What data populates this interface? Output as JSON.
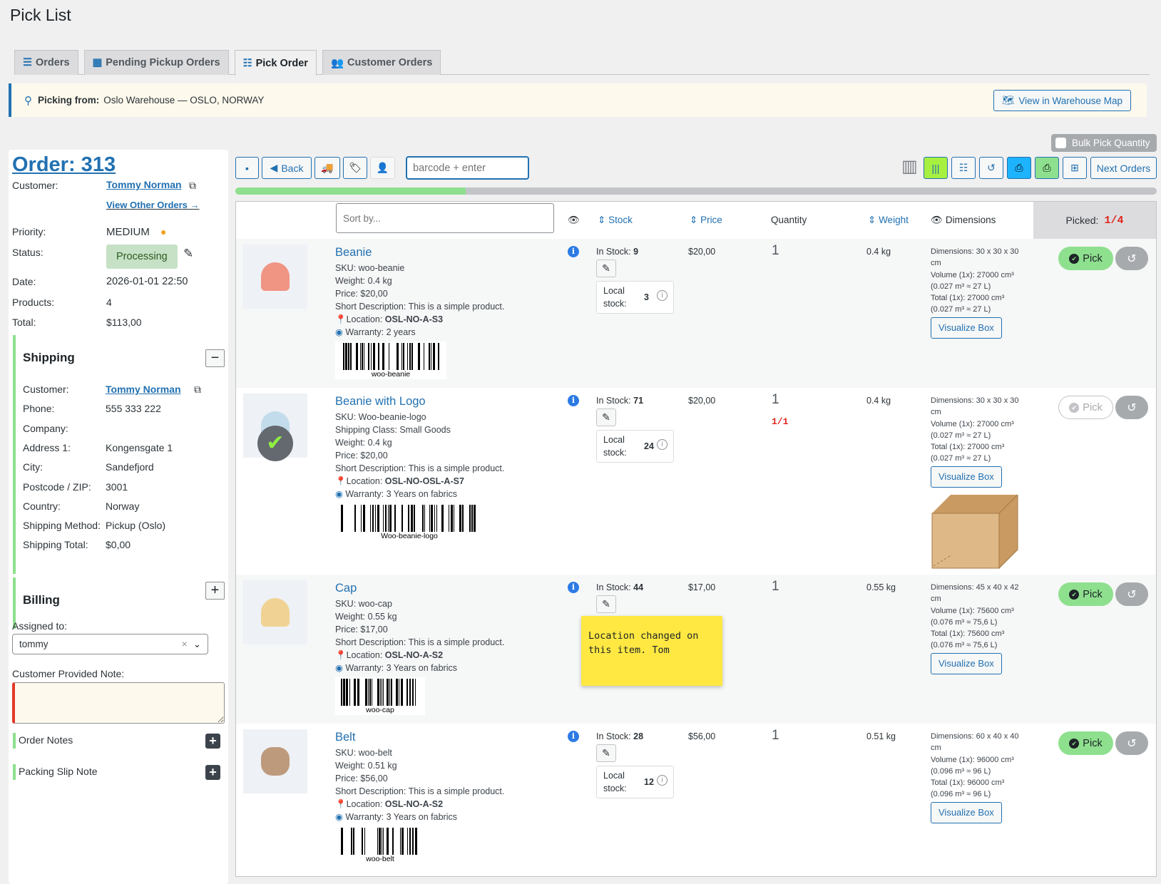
{
  "page_title": "Pick List",
  "tabs": [
    {
      "label": "Orders",
      "icon": "list-icon",
      "active": false
    },
    {
      "label": "Pending Pickup Orders",
      "icon": "store-icon",
      "active": false
    },
    {
      "label": "Pick Order",
      "icon": "checklist-icon",
      "active": true
    },
    {
      "label": "Customer Orders",
      "icon": "users-icon",
      "active": false
    }
  ],
  "notice": {
    "label": "Picking from:",
    "value": "Oslo Warehouse — OSLO, NORWAY",
    "map_button": "View in Warehouse Map"
  },
  "bulk_pick_label": "Bulk Pick Quantity",
  "order": {
    "title": "Order: 313",
    "customer_label": "Customer:",
    "customer": "Tommy Norman",
    "view_other": "View Other Orders →",
    "priority_label": "Priority:",
    "priority": "MEDIUM",
    "status_label": "Status:",
    "status": "Processing",
    "date_label": "Date:",
    "date": "2026-01-01 22:50",
    "products_label": "Products:",
    "products": "4",
    "total_label": "Total:",
    "total": "$113,00"
  },
  "shipping": {
    "title": "Shipping",
    "fields": [
      {
        "k": "Customer:",
        "v": "Tommy Norman",
        "link": true
      },
      {
        "k": "Phone:",
        "v": "555 333 222"
      },
      {
        "k": "Company:",
        "v": ""
      },
      {
        "k": "Address 1:",
        "v": "Kongensgate 1"
      },
      {
        "k": "City:",
        "v": "Sandefjord"
      },
      {
        "k": "Postcode / ZIP:",
        "v": "3001"
      },
      {
        "k": "Country:",
        "v": "Norway"
      },
      {
        "k": "Shipping Method:",
        "v": "Pickup (Oslo)"
      },
      {
        "k": "Shipping Total:",
        "v": "$0,00"
      }
    ]
  },
  "billing": {
    "title": "Billing"
  },
  "assigned": {
    "label": "Assigned to:",
    "value": "tommy"
  },
  "customer_note": {
    "label": "Customer Provided Note:",
    "value": ""
  },
  "order_notes_label": "Order Notes",
  "packing_slip_label": "Packing Slip Note",
  "toolbar": {
    "back": "Back",
    "barcode_placeholder": "barcode + enter",
    "next_orders": "Next Orders"
  },
  "progress": {
    "picked": 1,
    "total": 4,
    "percent": 25
  },
  "columns": {
    "sort_placeholder": "Sort by...",
    "stock": "Stock",
    "price": "Price",
    "quantity": "Quantity",
    "weight": "Weight",
    "dimensions": "Dimensions",
    "picked_label": "Picked:",
    "picked_value": "1/4"
  },
  "products": [
    {
      "name": "Beanie",
      "details": [
        "SKU: woo-beanie",
        "Weight: 0.4 kg",
        "Price: $20,00",
        "Short Description: This is a simple product."
      ],
      "location": "OSL-NO-A-S3",
      "warranty": "2 years",
      "barcode": "woo-beanie",
      "in_stock": "9",
      "local_stock": "3",
      "price": "$20,00",
      "qty": "1",
      "qty_picked": "",
      "weight": "0.4 kg",
      "dims": [
        "Dimensions: 30 x 30 x 30 cm",
        "Volume (1x): 27000 cm³",
        "(0.027 m³ ≈ 27 L)",
        "Total (1x): 27000 cm³",
        "(0.027 m³ ≈ 27 L)"
      ],
      "picked": false,
      "thumb_color": "#f08a78"
    },
    {
      "name": "Beanie with Logo",
      "details": [
        "SKU: Woo-beanie-logo",
        "Shipping Class: Small Goods",
        "Weight: 0.4 kg",
        "Price: $20,00",
        "Short Description: This is a simple product."
      ],
      "location": "OSL-NO-OSL-A-S7",
      "warranty": "3 Years on fabrics",
      "barcode": "Woo-beanie-logo",
      "in_stock": "71",
      "local_stock": "24",
      "price": "$20,00",
      "qty": "1",
      "qty_picked": "1/1",
      "weight": "0.4 kg",
      "dims": [
        "Dimensions: 30 x 30 x 30 cm",
        "Volume (1x): 27000 cm³",
        "(0.027 m³ ≈ 27 L)",
        "Total (1x): 27000 cm³",
        "(0.027 m³ ≈ 27 L)"
      ],
      "picked": true,
      "thumb_color": "#bcd9ea",
      "box_shown": true
    },
    {
      "name": "Cap",
      "details": [
        "SKU: woo-cap",
        "Weight: 0.55 kg",
        "Price: $17,00",
        "Short Description: This is a simple product."
      ],
      "location": "OSL-NO-A-S2",
      "warranty": "3 Years on fabrics",
      "barcode": "woo-cap",
      "in_stock": "44",
      "local_stock": "",
      "price": "$17,00",
      "qty": "1",
      "qty_picked": "",
      "weight": "0.55 kg",
      "dims": [
        "Dimensions: 45 x 40 x 42 cm",
        "Volume (1x): 75600 cm³",
        "(0.076 m³ ≈ 75,6 L)",
        "Total (1x): 75600 cm³",
        "(0.076 m³ ≈ 75,6 L)"
      ],
      "picked": false,
      "thumb_color": "#f0cf8a",
      "sticky_note": "Location changed on this item. Tom"
    },
    {
      "name": "Belt",
      "details": [
        "SKU: woo-belt",
        "Weight: 0.51 kg",
        "Price: $56,00",
        "Short Description: This is a simple product."
      ],
      "location": "OSL-NO-A-S2",
      "warranty": "3 Years on fabrics",
      "barcode": "woo-belt",
      "in_stock": "28",
      "local_stock": "12",
      "price": "$56,00",
      "qty": "1",
      "qty_picked": "",
      "weight": "0.51 kg",
      "dims": [
        "Dimensions: 60 x 40 x 40 cm",
        "Volume (1x): 96000 cm³",
        "(0.096 m³ ≈ 96 L)",
        "Total (1x): 96000 cm³",
        "(0.096 m³ ≈ 96 L)"
      ],
      "picked": false,
      "thumb_color": "#b89070"
    }
  ],
  "labels": {
    "in_stock": "In Stock:",
    "local_stock": "Local stock:",
    "location": "Location:",
    "warranty": "Warranty:",
    "visualize_box": "Visualize Box",
    "pick": "Pick"
  },
  "colors": {
    "accent": "#2271b1",
    "pick_green": "#8ee08e",
    "picked_red": "#e2261d",
    "sticky_yellow": "#ffe842"
  }
}
